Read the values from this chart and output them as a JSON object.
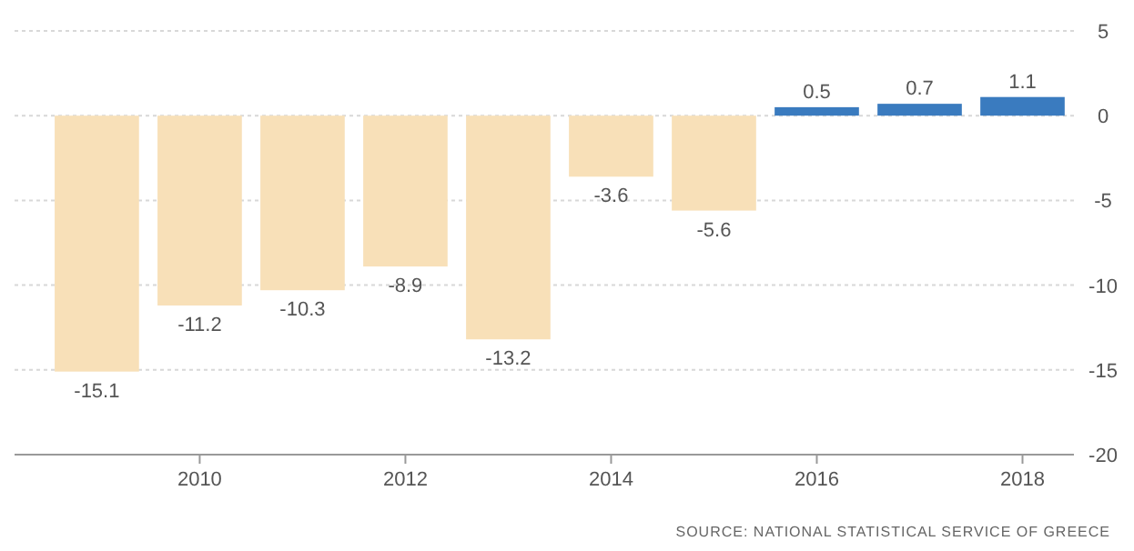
{
  "chart_data": {
    "type": "bar",
    "x": [
      2009,
      2010,
      2011,
      2012,
      2013,
      2014,
      2015,
      2016,
      2017,
      2018
    ],
    "values": [
      -15.1,
      -11.2,
      -10.3,
      -8.9,
      -13.2,
      -3.6,
      -5.6,
      0.5,
      0.7,
      1.1
    ],
    "colors": [
      "#f8e0b8",
      "#f8e0b8",
      "#f8e0b8",
      "#f8e0b8",
      "#f8e0b8",
      "#f8e0b8",
      "#f8e0b8",
      "#3a7bbf",
      "#3a7bbf",
      "#3a7bbf"
    ],
    "xlim": [
      2008.2,
      2018.5
    ],
    "xticks": [
      2010,
      2012,
      2014,
      2016,
      2018
    ],
    "ylim": [
      -20,
      5
    ],
    "yticks": [
      -20,
      -15,
      -10,
      -5,
      0,
      5
    ],
    "grid": "y",
    "data_labels": true,
    "annotations": [
      "SOURCE: NATIONAL STATISTICAL SERVICE OF GREECE"
    ]
  }
}
